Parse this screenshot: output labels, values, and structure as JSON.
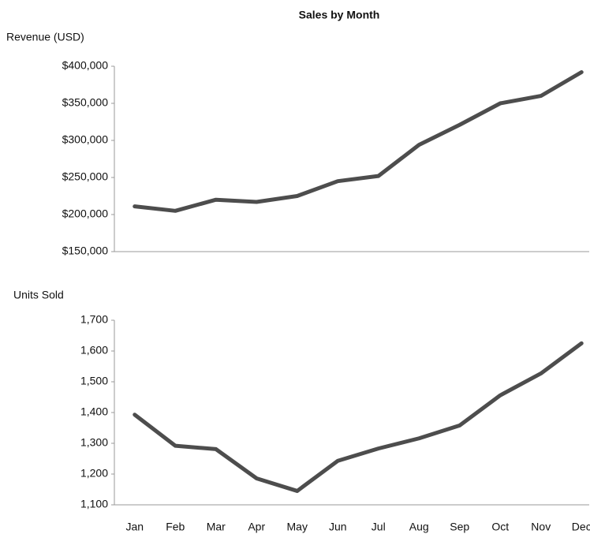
{
  "chart_data": [
    {
      "type": "line",
      "title": "Sales by Month",
      "y_label": "Revenue (USD)",
      "series": [
        {
          "name": "Revenue",
          "color": "#4d4d4d",
          "values": [
            211000,
            205000,
            220000,
            217000,
            225000,
            245000,
            252000,
            294000,
            321000,
            350000,
            360000,
            392000
          ]
        }
      ],
      "ylim": [
        150000,
        400000
      ],
      "yticks": [
        {
          "value": 150000,
          "label": "$150,000"
        },
        {
          "value": 200000,
          "label": "$200,000"
        },
        {
          "value": 250000,
          "label": "$250,000"
        },
        {
          "value": 300000,
          "label": "$300,000"
        },
        {
          "value": 350000,
          "label": "$350,000"
        },
        {
          "value": 400000,
          "label": "$400,000"
        }
      ]
    },
    {
      "type": "line",
      "y_label": "Units Sold",
      "categories": [
        "Jan",
        "Feb",
        "Mar",
        "Apr",
        "May",
        "Jun",
        "Jul",
        "Aug",
        "Sep",
        "Oct",
        "Nov",
        "Dec"
      ],
      "series": [
        {
          "name": "Units",
          "color": "#4d4d4d",
          "values": [
            1393,
            1292,
            1281,
            1186,
            1145,
            1243,
            1283,
            1316,
            1358,
            1456,
            1527,
            1625
          ]
        }
      ],
      "ylim": [
        1100,
        1700
      ],
      "yticks": [
        {
          "value": 1100,
          "label": "1,100"
        },
        {
          "value": 1200,
          "label": "1,200"
        },
        {
          "value": 1300,
          "label": "1,300"
        },
        {
          "value": 1400,
          "label": "1,400"
        },
        {
          "value": 1500,
          "label": "1,500"
        },
        {
          "value": 1600,
          "label": "1,600"
        },
        {
          "value": 1700,
          "label": "1,700"
        }
      ]
    }
  ]
}
